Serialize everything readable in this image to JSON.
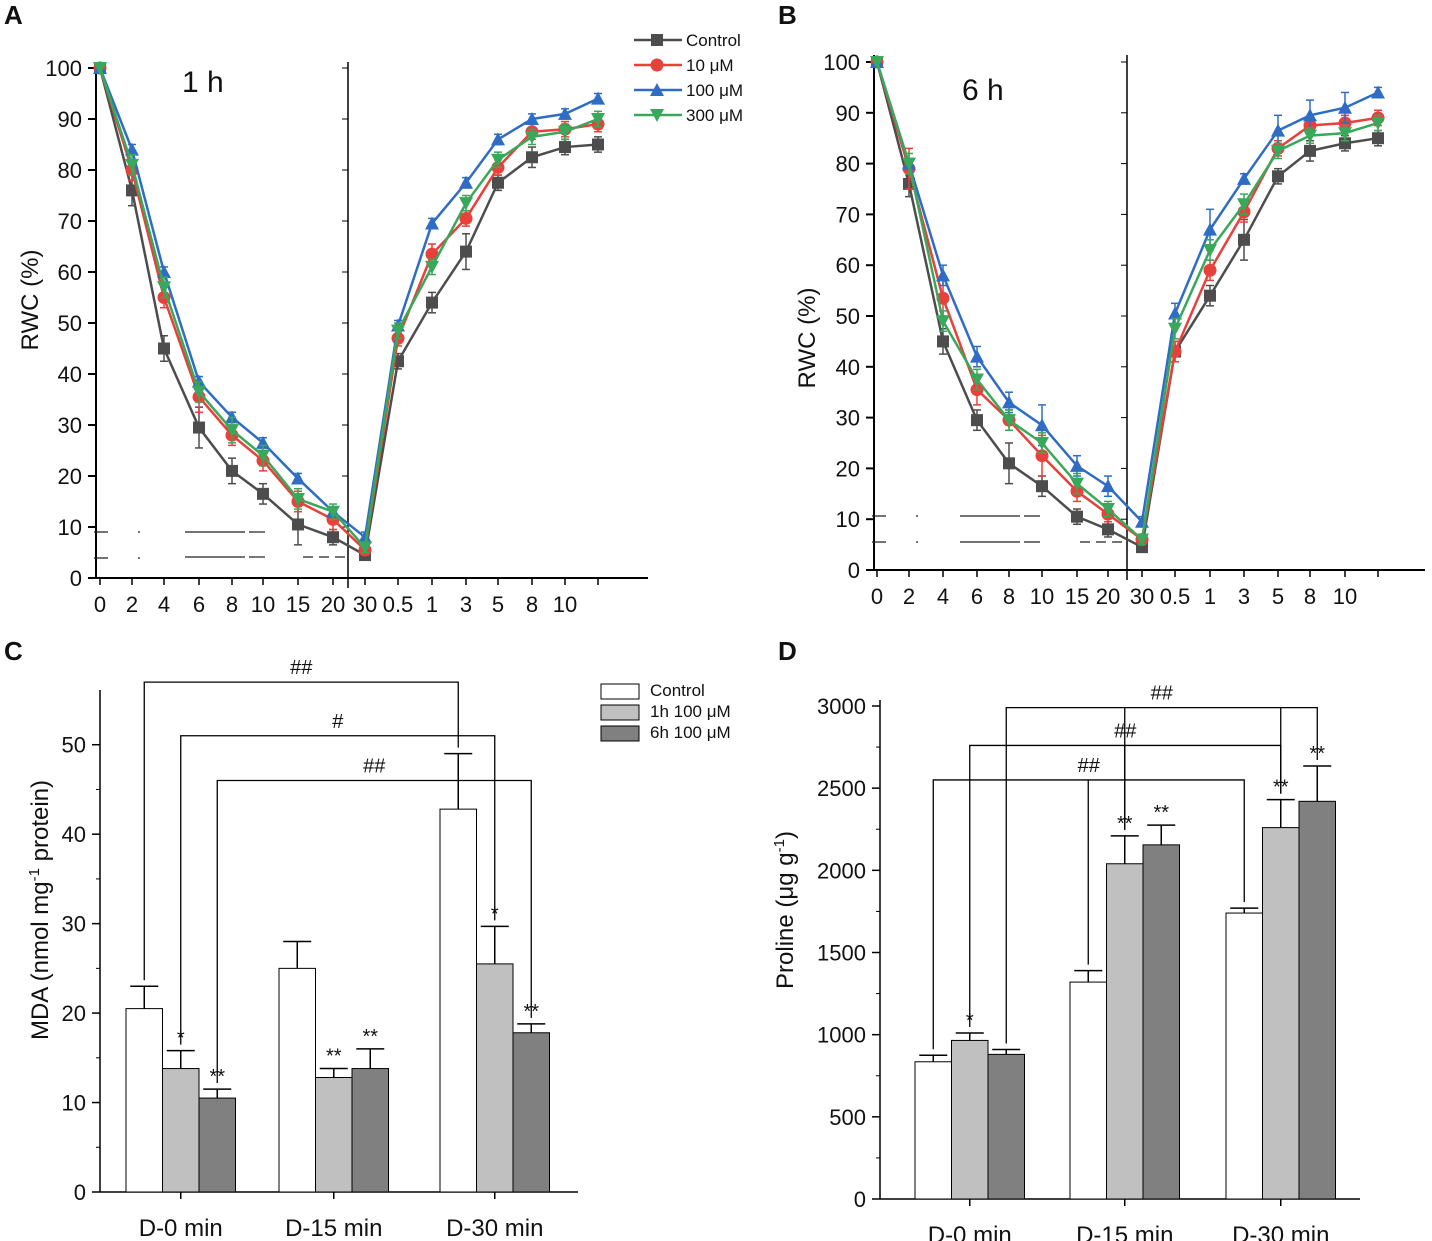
{
  "colors": {
    "control": "#4d4d4d",
    "c10": "#e8403a",
    "c100": "#2f6dc4",
    "c300": "#3aa85a",
    "bar_control": "#ffffff",
    "bar_1h": "#c0c0c0",
    "bar_6h": "#808080",
    "axis": "#000000"
  },
  "chart_data": [
    {
      "panel": "A",
      "type": "line",
      "inner_label": "1 h",
      "ylabel": "RWC (%)",
      "ylim": [
        0,
        100
      ],
      "yticks": [
        "0",
        "10",
        "20",
        "30",
        "40",
        "50",
        "60",
        "70",
        "80",
        "90",
        "100"
      ],
      "x_left": [
        "0",
        "2",
        "4",
        "6",
        "8",
        "10",
        "15",
        "20"
      ],
      "x_right": [
        "30",
        "0.5",
        "1",
        "3",
        "5",
        "8",
        "10"
      ],
      "legend": [
        "Control",
        "10 μM",
        "100 μM",
        "300 μM"
      ],
      "series": [
        {
          "name": "Control",
          "marker": "square",
          "left": [
            100,
            76,
            45,
            29.5,
            21,
            16.5,
            10.5,
            8
          ],
          "left_err": [
            0,
            3,
            2.5,
            4,
            2.5,
            2,
            4,
            1.5
          ],
          "right": [
            4.5,
            42.5,
            54,
            64,
            77.5,
            82.5,
            84.5,
            85
          ],
          "right_err": [
            1,
            1.5,
            2,
            3.5,
            1.5,
            2,
            1.5,
            1.5
          ]
        },
        {
          "name": "10 μM",
          "marker": "circle",
          "left": [
            100,
            80,
            55,
            35.5,
            28,
            23,
            15,
            11.5
          ],
          "left_err": [
            0,
            2,
            2,
            3,
            2,
            2,
            2,
            2
          ],
          "right": [
            5.5,
            47,
            63.5,
            70.5,
            80.5,
            87.5,
            88,
            89
          ],
          "right_err": [
            1,
            1.5,
            2,
            1.5,
            1.5,
            1.5,
            1.5,
            1.5
          ]
        },
        {
          "name": "100 μM",
          "marker": "triangle-up",
          "left": [
            100,
            84,
            60,
            38.5,
            31.5,
            26.5,
            19.5,
            13
          ],
          "left_err": [
            0,
            1,
            1,
            1,
            1,
            1,
            1,
            1
          ],
          "right": [
            8,
            49.5,
            69.5,
            77.5,
            86,
            90,
            91,
            94
          ],
          "right_err": [
            1,
            1,
            1,
            1,
            1,
            1,
            1,
            1
          ]
        },
        {
          "name": "300 μM",
          "marker": "triangle-down",
          "left": [
            100,
            81,
            57,
            36.5,
            29,
            24,
            15.5,
            13
          ],
          "left_err": [
            0,
            2,
            2,
            2,
            2.5,
            2,
            2,
            1.5
          ],
          "right": [
            6,
            48.5,
            61,
            73.5,
            82,
            86.5,
            87.5,
            90
          ],
          "right_err": [
            1,
            1.5,
            1.5,
            1.5,
            1.5,
            1.5,
            1.5,
            1.5
          ]
        }
      ]
    },
    {
      "panel": "B",
      "type": "line",
      "inner_label": "6 h",
      "ylabel": "RWC (%)",
      "ylim": [
        0,
        100
      ],
      "yticks": [
        "0",
        "10",
        "20",
        "30",
        "40",
        "50",
        "60",
        "70",
        "80",
        "90",
        "100"
      ],
      "x_left": [
        "0",
        "2",
        "4",
        "6",
        "8",
        "10",
        "15",
        "20"
      ],
      "x_right": [
        "30",
        "0.5",
        "1",
        "3",
        "5",
        "8",
        "10"
      ],
      "series": [
        {
          "name": "Control",
          "marker": "square",
          "left": [
            100,
            76,
            45,
            29.5,
            21,
            16.5,
            10.5,
            8
          ],
          "left_err": [
            0,
            2.5,
            2.5,
            2,
            4,
            2,
            1.5,
            1.5
          ],
          "right": [
            4.5,
            43,
            54,
            65,
            77.5,
            82.5,
            84,
            85
          ],
          "right_err": [
            1,
            2,
            2,
            4,
            1.5,
            2,
            1.5,
            1.5
          ]
        },
        {
          "name": "10 μM",
          "marker": "circle",
          "left": [
            100,
            79,
            53.5,
            35.5,
            29.5,
            22.5,
            15.5,
            11
          ],
          "left_err": [
            0,
            4,
            4,
            3,
            2,
            4,
            2,
            1.5
          ],
          "right": [
            6,
            43,
            59,
            70.5,
            83,
            87.5,
            88,
            89
          ],
          "right_err": [
            1,
            2,
            2,
            2,
            1.5,
            1.5,
            1.5,
            1.5
          ]
        },
        {
          "name": "100 μM",
          "marker": "triangle-up",
          "left": [
            100,
            80,
            58,
            42,
            33,
            28.5,
            20.5,
            16.5
          ],
          "left_err": [
            0,
            1,
            2,
            2,
            2,
            4,
            2,
            2
          ],
          "right": [
            9.5,
            50.5,
            67,
            77,
            86.5,
            89.5,
            91,
            94
          ],
          "right_err": [
            1,
            2,
            4,
            1,
            3,
            3,
            3,
            1
          ]
        },
        {
          "name": "300 μM",
          "marker": "triangle-down",
          "left": [
            100,
            80,
            49,
            37.5,
            29.5,
            25,
            17,
            12
          ],
          "left_err": [
            0,
            2,
            2,
            2,
            2,
            2,
            2,
            1.5
          ],
          "right": [
            6,
            47.5,
            63,
            72,
            82.5,
            85.5,
            86,
            88
          ],
          "right_err": [
            1,
            2,
            2,
            2,
            1.5,
            1.5,
            1.5,
            1.5
          ]
        }
      ]
    },
    {
      "panel": "C",
      "type": "bar",
      "ylabel": "MDA (nmol mg-1 protein)",
      "ylim": [
        0,
        55
      ],
      "yticks": [
        "0",
        "10",
        "20",
        "30",
        "40",
        "50"
      ],
      "categories": [
        "D-0 min",
        "D-15 min",
        "D-30 min"
      ],
      "legend": [
        "Control",
        "1h 100 μM",
        "6h 100 μM"
      ],
      "series": [
        {
          "name": "Control",
          "values": [
            20.5,
            25,
            42.8
          ],
          "errors": [
            2.5,
            3,
            6.2
          ],
          "stars": [
            "",
            "",
            ""
          ]
        },
        {
          "name": "1h 100 μM",
          "values": [
            13.8,
            12.8,
            25.5
          ],
          "errors": [
            2,
            1,
            4.2
          ],
          "stars": [
            "*",
            "**",
            "*"
          ]
        },
        {
          "name": "6h 100 μM",
          "values": [
            10.5,
            13.8,
            17.8
          ],
          "errors": [
            1,
            2.2,
            1
          ],
          "stars": [
            "**",
            "**",
            "**"
          ]
        }
      ],
      "brackets": [
        {
          "label": "##",
          "from_series": 0,
          "from_cat": 0,
          "to_series": 0,
          "to_cat": 2,
          "level": 57
        },
        {
          "label": "#",
          "from_series": 1,
          "from_cat": 0,
          "to_series": 1,
          "to_cat": 2,
          "level": 51
        },
        {
          "label": "##",
          "from_series": 2,
          "from_cat": 0,
          "to_series": 2,
          "to_cat": 2,
          "level": 46
        }
      ]
    },
    {
      "panel": "D",
      "type": "bar",
      "ylabel": "Proline (μg g-1)",
      "ylim": [
        0,
        3000
      ],
      "yticks": [
        "0",
        "500",
        "1000",
        "1500",
        "2000",
        "2500",
        "3000"
      ],
      "categories": [
        "D-0 min",
        "D-15 min",
        "D-30 min"
      ],
      "series": [
        {
          "name": "Control",
          "values": [
            835,
            1320,
            1740
          ],
          "errors": [
            40,
            70,
            30
          ],
          "stars": [
            "",
            "",
            ""
          ]
        },
        {
          "name": "1h 100 μM",
          "values": [
            965,
            2040,
            2260
          ],
          "errors": [
            45,
            170,
            170
          ],
          "stars": [
            "*",
            "**",
            "**"
          ]
        },
        {
          "name": "6h 100 μM",
          "values": [
            880,
            2155,
            2420
          ],
          "errors": [
            30,
            120,
            215
          ],
          "stars": [
            "",
            "**",
            "**"
          ]
        }
      ],
      "brackets": [
        {
          "label": "##",
          "from_series": 2,
          "from_cat": 0,
          "to_series": 2,
          "to_cat": 2,
          "level": 2990,
          "drop_mid": [
            [
              1,
              1
            ],
            [
              1,
              2
            ]
          ]
        },
        {
          "label": "##",
          "from_series": 1,
          "from_cat": 0,
          "to_series": 1,
          "to_cat": 2,
          "level": 2760,
          "drop_mid": [
            [
              1,
              1
            ]
          ]
        },
        {
          "label": "##",
          "from_series": 0,
          "from_cat": 0,
          "to_series": 0,
          "to_cat": 2,
          "level": 2550,
          "drop_mid": [
            [
              0,
              1
            ]
          ]
        }
      ]
    }
  ]
}
